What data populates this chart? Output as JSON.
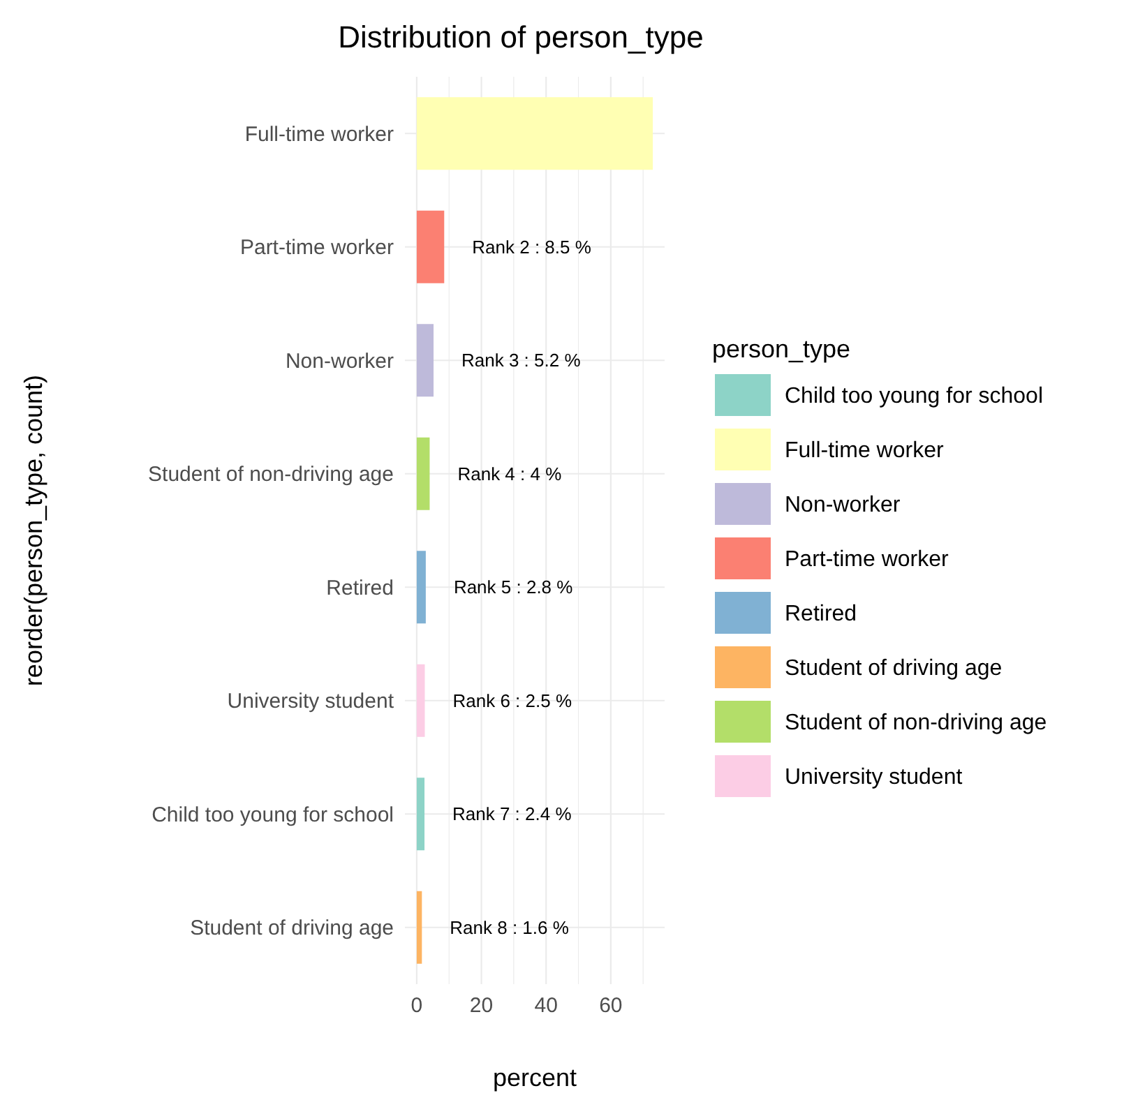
{
  "chart_data": {
    "type": "bar",
    "orientation": "horizontal",
    "title": "Distribution of person_type",
    "xlabel": "percent",
    "ylabel": "reorder(person_type, count)",
    "legend_title": "person_type",
    "legend": "right",
    "grid": true,
    "categories": [
      "Full-time worker",
      "Part-time worker",
      "Non-worker",
      "Student of non-driving age",
      "Retired",
      "University student",
      "Child too young for school",
      "Student of driving age"
    ],
    "xlim": [
      -3.65,
      76.65
    ],
    "xticks": [
      0,
      {
        "value": 10,
        "label": null
      },
      20,
      {
        "value": 30,
        "label": null
      },
      40,
      {
        "value": 50,
        "label": null
      },
      60,
      {
        "value": 70,
        "label": null
      }
    ],
    "series": [
      {
        "name": "Child too young for school",
        "color": "#8dd3c7",
        "values": [
          null,
          null,
          null,
          null,
          null,
          null,
          2.4,
          null
        ],
        "value_labels": [
          null,
          null,
          null,
          null,
          null,
          null,
          "Rank 7 : 2.4 %",
          null
        ]
      },
      {
        "name": "Full-time worker",
        "color": "#ffffb3",
        "values": [
          73,
          null,
          null,
          null,
          null,
          null,
          null,
          null
        ],
        "value_labels": [
          null,
          null,
          null,
          null,
          null,
          null,
          null,
          null
        ]
      },
      {
        "name": "Non-worker",
        "color": "#bebada",
        "values": [
          null,
          null,
          5.2,
          null,
          null,
          null,
          null,
          null
        ],
        "value_labels": [
          null,
          null,
          "Rank 3 : 5.2 %",
          null,
          null,
          null,
          null,
          null
        ]
      },
      {
        "name": "Part-time worker",
        "color": "#fb8072",
        "values": [
          null,
          8.5,
          null,
          null,
          null,
          null,
          null,
          null
        ],
        "value_labels": [
          null,
          "Rank 2 : 8.5 %",
          null,
          null,
          null,
          null,
          null,
          null
        ]
      },
      {
        "name": "Retired",
        "color": "#80b1d3",
        "values": [
          null,
          null,
          null,
          null,
          2.8,
          null,
          null,
          null
        ],
        "value_labels": [
          null,
          null,
          null,
          null,
          "Rank 5 : 2.8 %",
          null,
          null,
          null
        ]
      },
      {
        "name": "Student of driving age",
        "color": "#fdb462",
        "values": [
          null,
          null,
          null,
          null,
          null,
          null,
          null,
          1.6
        ],
        "value_labels": [
          null,
          null,
          null,
          null,
          null,
          null,
          null,
          "Rank 8 : 1.6 %"
        ]
      },
      {
        "name": "Student of non-driving age",
        "color": "#b3de69",
        "values": [
          null,
          null,
          null,
          4,
          null,
          null,
          null,
          null
        ],
        "value_labels": [
          null,
          null,
          null,
          "Rank 4 : 4 %",
          null,
          null,
          null,
          null
        ]
      },
      {
        "name": "University student",
        "color": "#fccde5",
        "values": [
          null,
          null,
          null,
          null,
          null,
          2.5,
          null,
          null
        ],
        "value_labels": [
          null,
          null,
          null,
          null,
          null,
          "Rank 6 : 2.5 %",
          null,
          null
        ]
      }
    ]
  }
}
